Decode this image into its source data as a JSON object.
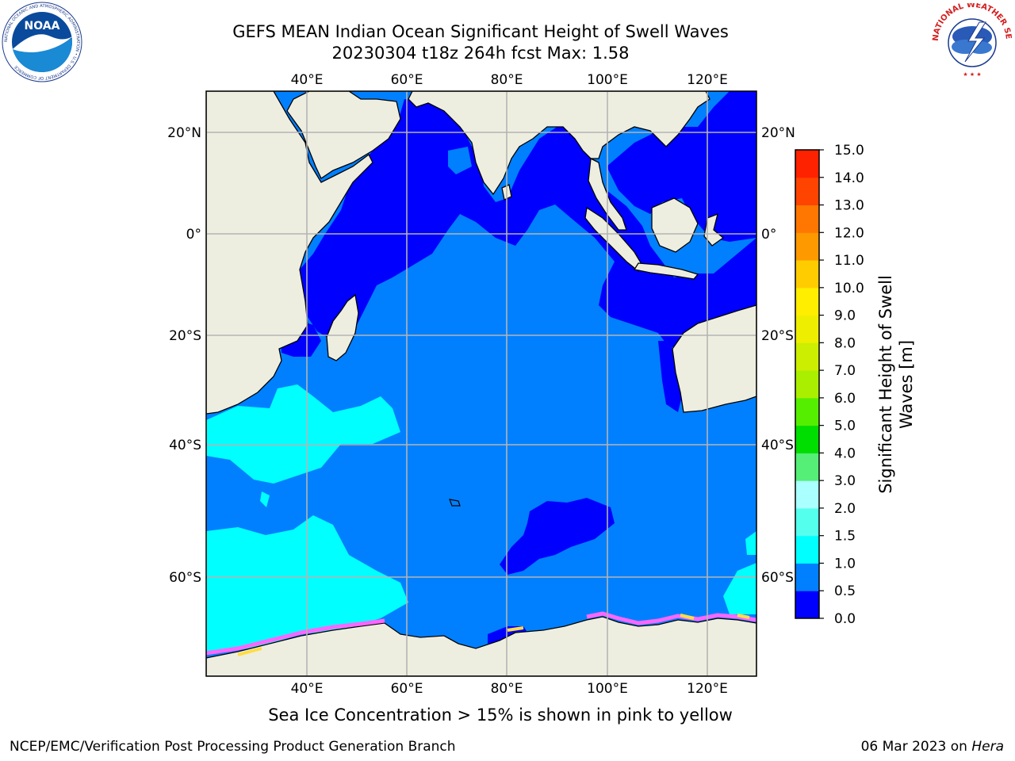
{
  "title": {
    "line1": "GEFS MEAN Indian Ocean Significant Height of Swell Waves",
    "line2": "20230304 t18z 264h fcst   Max: 1.58"
  },
  "logos": {
    "noaa_text": "NOAA",
    "noaa_ring": "NATIONAL OCEANIC AND ATMOSPHERIC ADMINISTRATION • U.S. DEPARTMENT OF COMMERCE",
    "nws_ring": "NATIONAL WEATHER SERVICE"
  },
  "map": {
    "lon_ticks": [
      "40°E",
      "60°E",
      "80°E",
      "100°E",
      "120°E"
    ],
    "lat_ticks": [
      "20°N",
      "0°",
      "20°S",
      "40°S",
      "60°S"
    ],
    "lon_range": [
      20,
      130
    ],
    "lat_range": [
      -71,
      27
    ],
    "colors": {
      "land": "#eeeee0",
      "coast": "#000000",
      "grid": "#b4b4b4",
      "ice_pink": "#ff66ff",
      "ice_yellow": "#ffdd44"
    }
  },
  "colorbar": {
    "label_line1": "Significant Height of Swell",
    "label_line2": "Waves [m]",
    "levels": [
      "0.0",
      "0.5",
      "1.0",
      "1.5",
      "2.0",
      "3.0",
      "4.0",
      "5.0",
      "6.0",
      "7.0",
      "8.0",
      "9.0",
      "10.0",
      "11.0",
      "12.0",
      "13.0",
      "14.0",
      "15.0"
    ],
    "colors": [
      "#0000ff",
      "#0080ff",
      "#00ffff",
      "#55ffee",
      "#aaffff",
      "#55ee77",
      "#00dd00",
      "#55ee00",
      "#aaee00",
      "#ccee00",
      "#eeee00",
      "#ffee00",
      "#ffcc00",
      "#ff9900",
      "#ff7700",
      "#ff4400",
      "#ff2200"
    ]
  },
  "caption": "Sea Ice Concentration > 15% is shown in pink to yellow",
  "footer": {
    "left": "NCEP/EMC/Verification Post Processing Product Generation Branch",
    "date": "06 Mar 2023 on ",
    "host": "Hera"
  }
}
